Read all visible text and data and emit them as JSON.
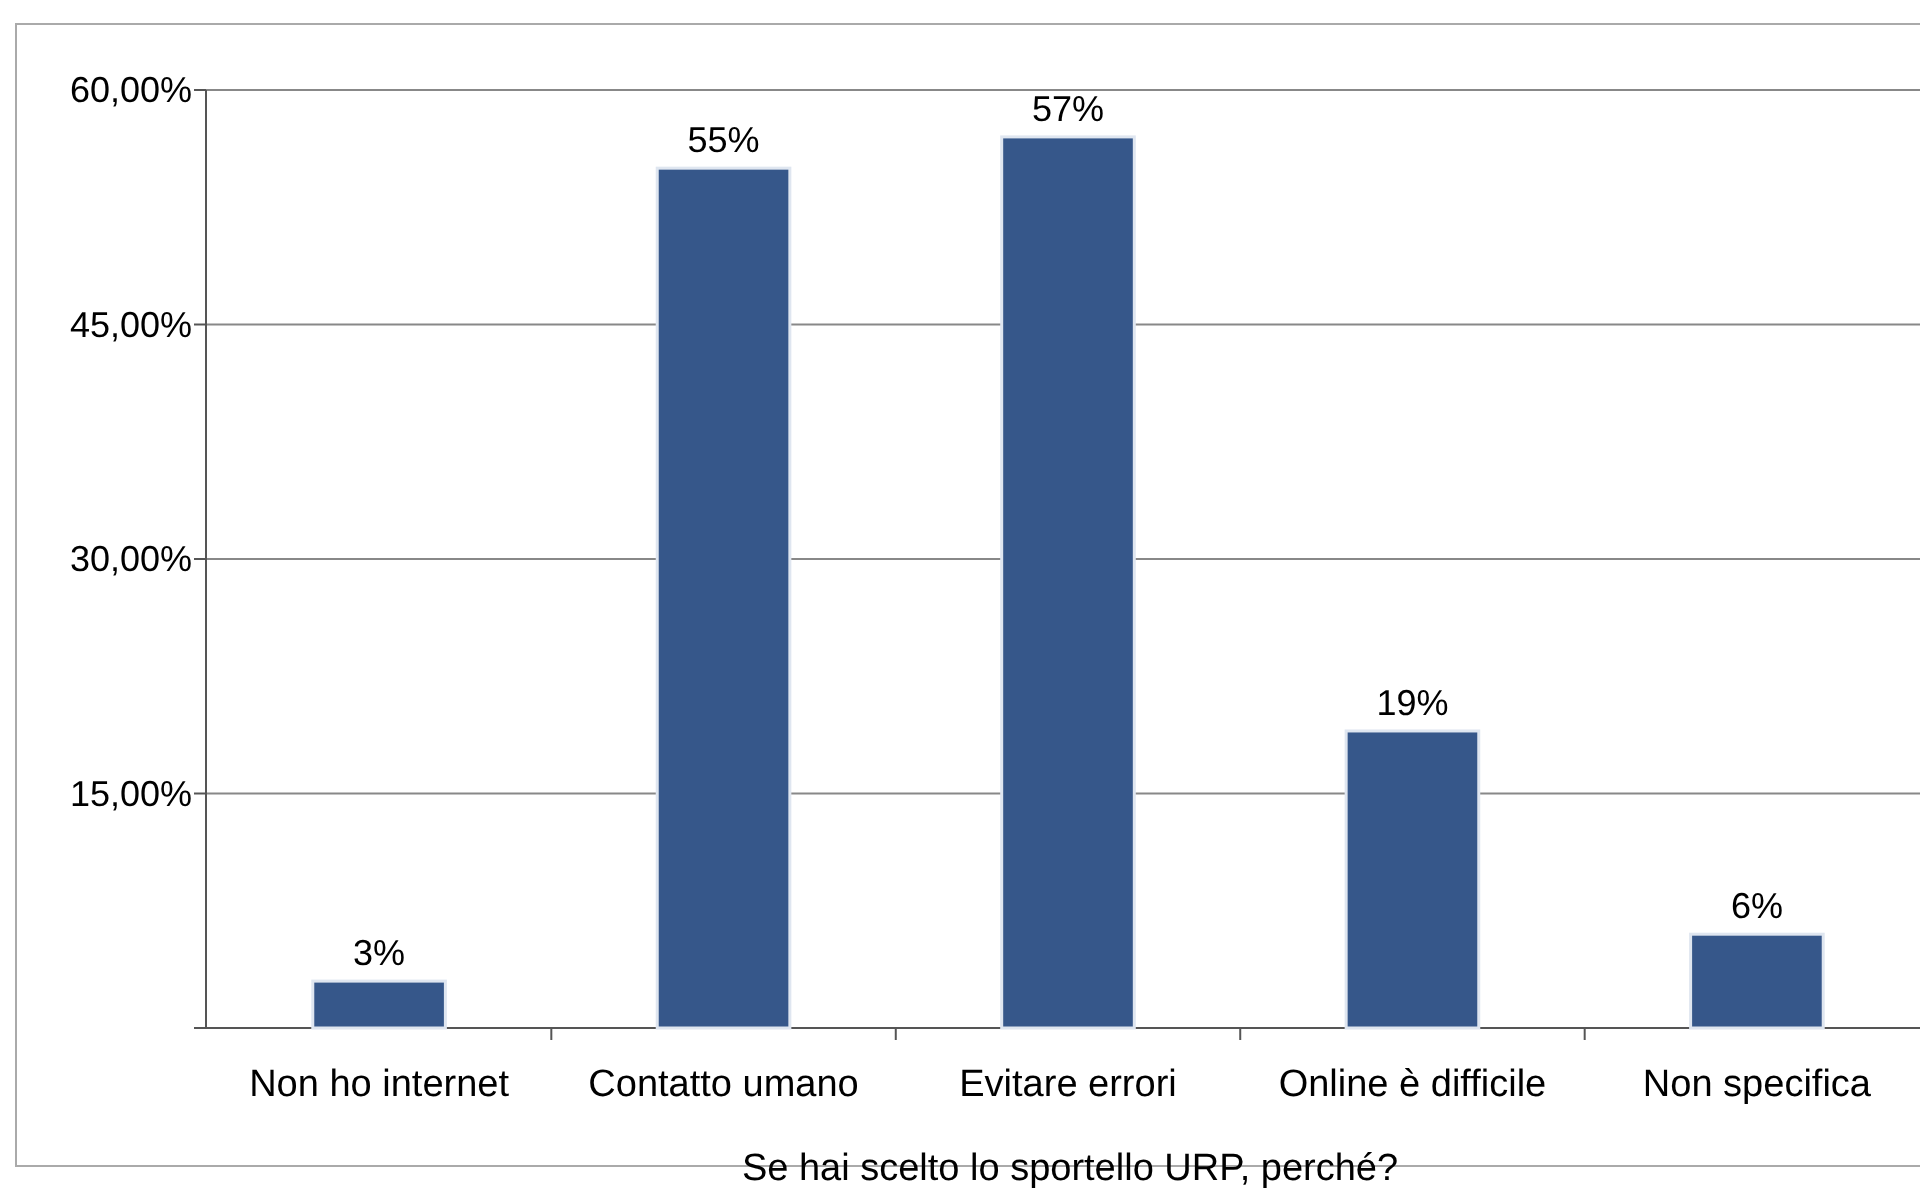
{
  "chart_data": {
    "type": "bar",
    "xlabel": "Se hai scelto lo sportello URP, perché?",
    "categories": [
      "Non ho internet",
      "Contatto umano",
      "Evitare errori",
      "Online è difficile",
      "Non specifica"
    ],
    "values": [
      3,
      55,
      57,
      19,
      6
    ],
    "value_labels": [
      "3%",
      "55%",
      "57%",
      "19%",
      "6%"
    ],
    "color": "#36578a",
    "ylim": [
      0,
      60
    ],
    "yticks": [
      {
        "value": 0,
        "label": null
      },
      {
        "value": 15,
        "label": "15,00%"
      },
      {
        "value": 30,
        "label": "30,00%"
      },
      {
        "value": 45,
        "label": "45,00%"
      },
      {
        "value": 60,
        "label": "60,00%"
      }
    ],
    "grid": "y"
  }
}
